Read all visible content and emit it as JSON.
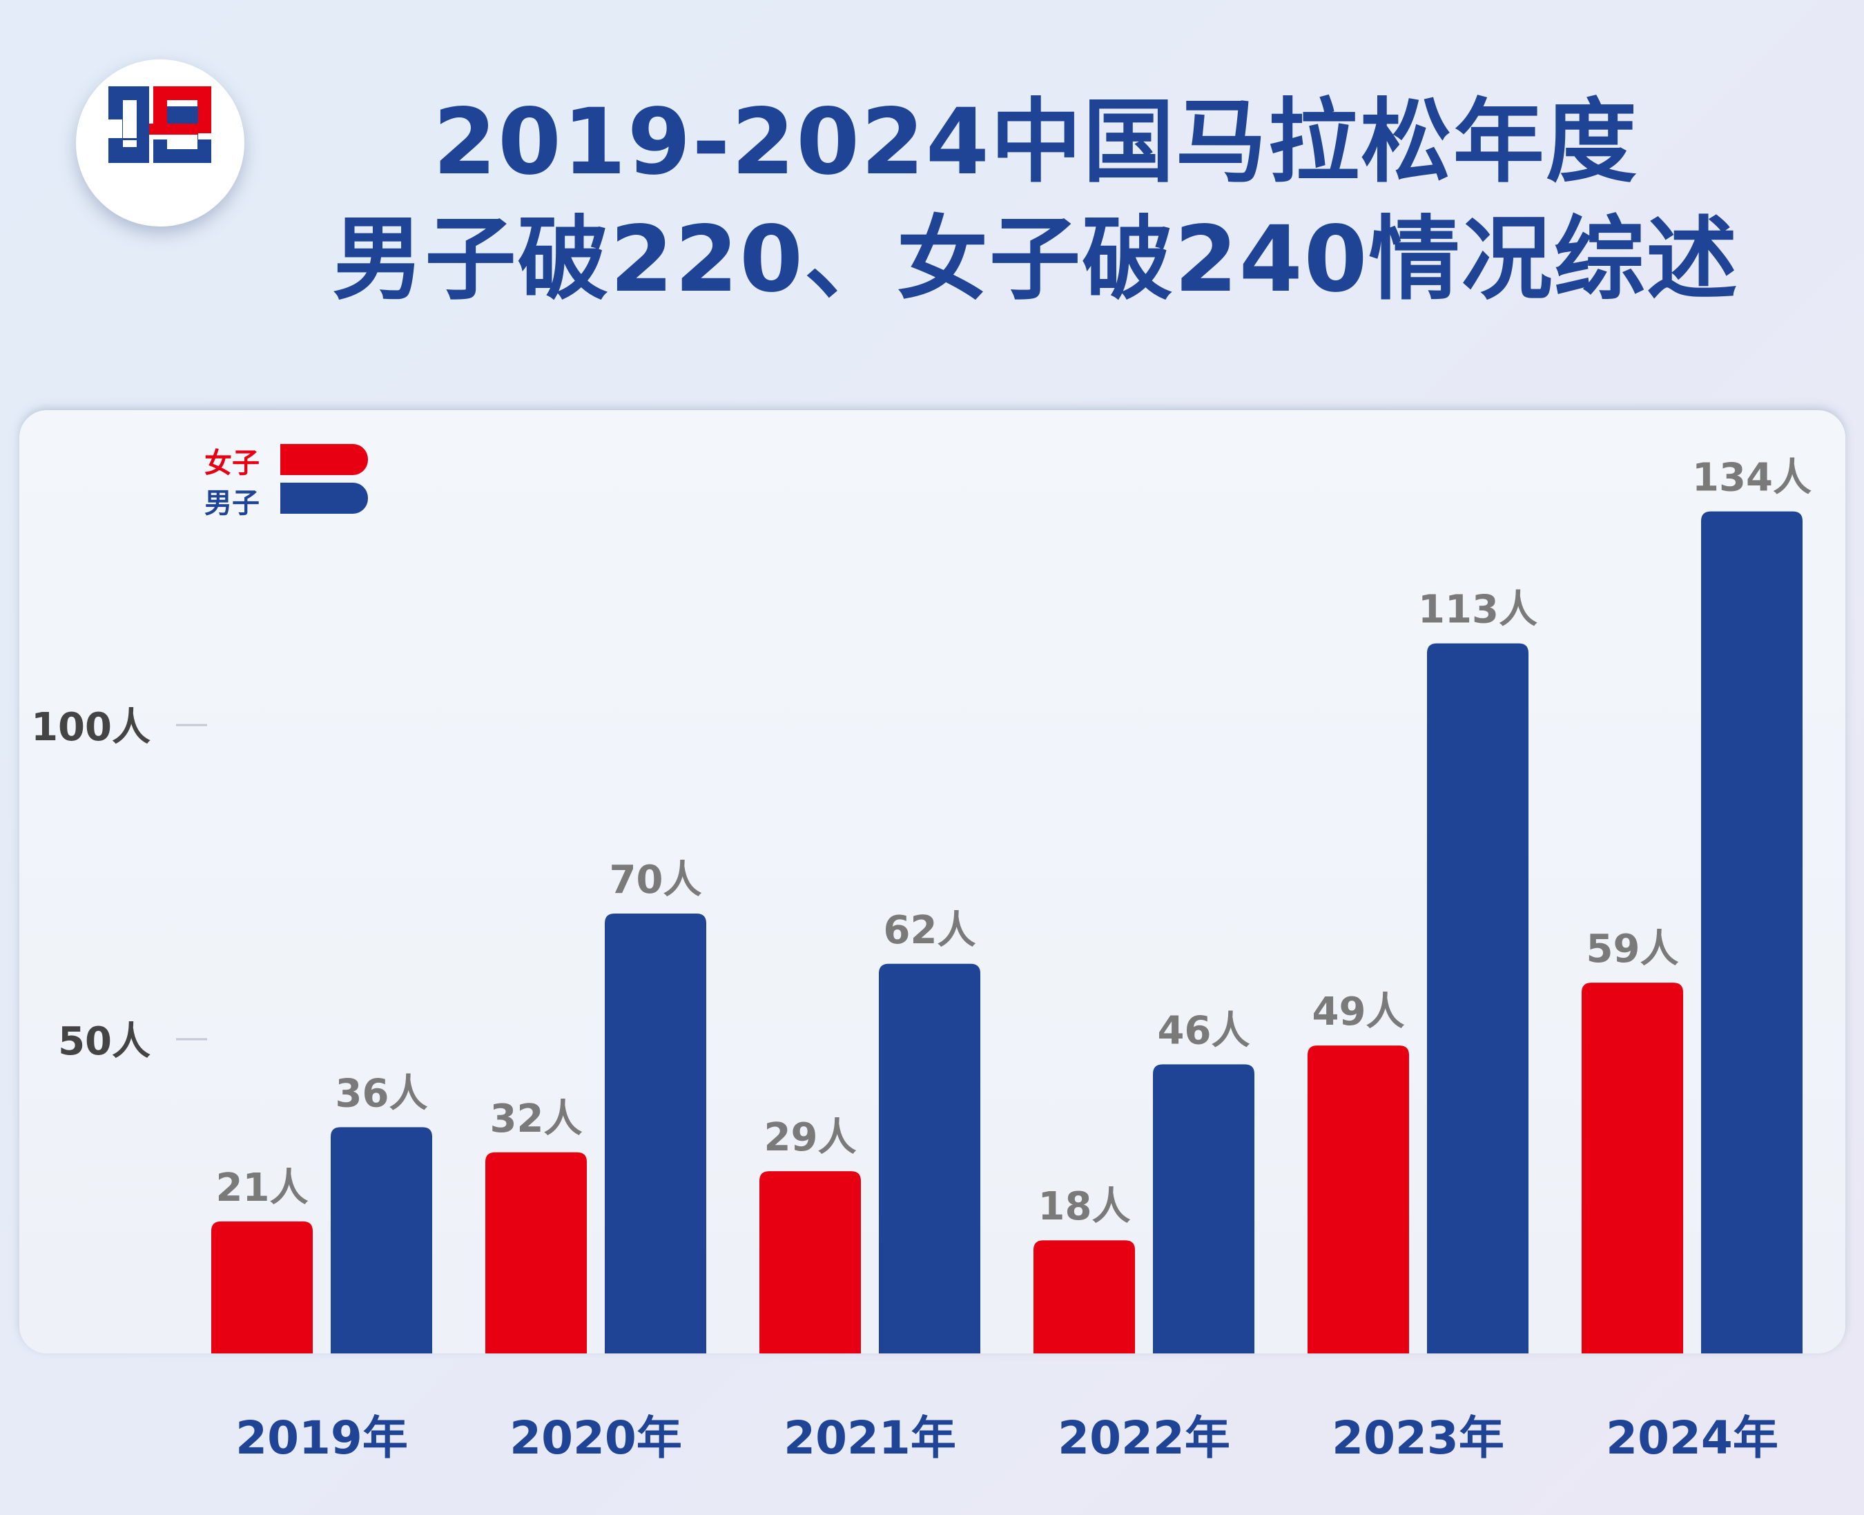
{
  "title": {
    "line1": "2019-2024中国马拉松年度",
    "line2": "男子破220、女子破240情况综述"
  },
  "logo": {
    "colors": [
      "#1f4496",
      "#e60012"
    ]
  },
  "chart_data": {
    "type": "bar",
    "categories": [
      "2019年",
      "2020年",
      "2021年",
      "2022年",
      "2023年",
      "2024年"
    ],
    "series": [
      {
        "name": "女子",
        "color": "#e60012",
        "values": [
          21,
          32,
          29,
          18,
          49,
          59
        ],
        "labels": [
          "21人",
          "32人",
          "29人",
          "18人",
          "49人",
          "59人"
        ]
      },
      {
        "name": "男子",
        "color": "#1f4496",
        "values": [
          36,
          70,
          62,
          46,
          113,
          134
        ],
        "labels": [
          "36人",
          "70人",
          "62人",
          "46人",
          "113人",
          "134人"
        ]
      }
    ],
    "yticks": [
      50,
      100
    ],
    "ytick_labels": [
      "50人",
      "100人"
    ],
    "ylim": [
      0,
      150
    ],
    "legend": "top-left",
    "grid": false
  }
}
